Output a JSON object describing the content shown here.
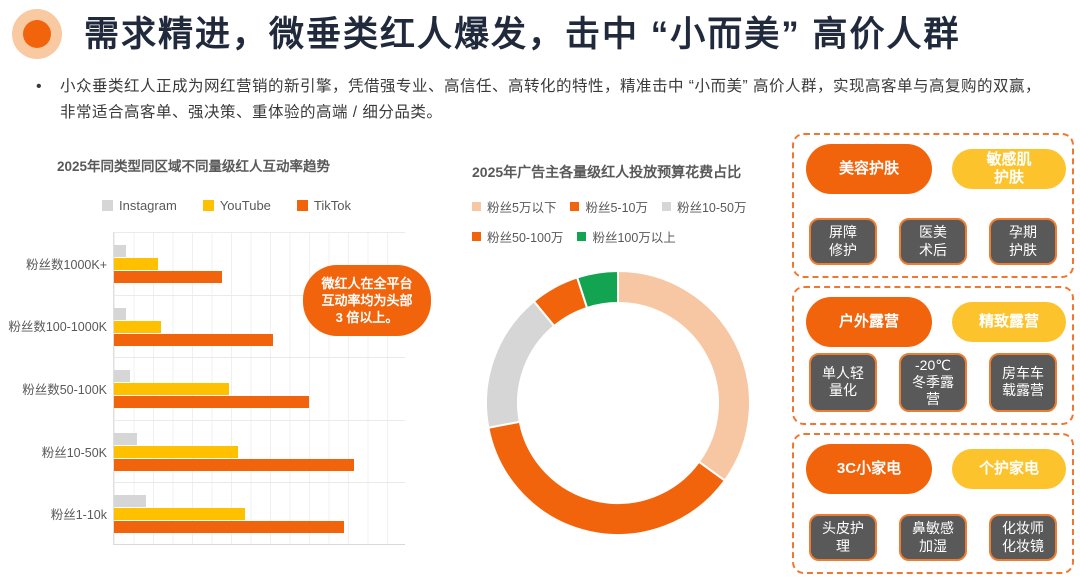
{
  "slide": {
    "title": "需求精进，微垂类红人爆发，击中 “小而美” 高价人群",
    "intro_bullet": "•",
    "intro_text": "小众垂类红人正成为网红营销的新引擎，凭借强专业、高信任、高转化的特性，精准击中 “小而美” 高价人群，实现高客单与高复购的双赢，非常适合高客单、强决策、重体验的高端 / 细分品类。"
  },
  "colors": {
    "accent_orange": "#F2640C",
    "accent_yellow": "#FFC000",
    "pill_yellow": "#FDC32C",
    "light_gray": "#D6D6D6",
    "peach": "#F7C7A4",
    "green": "#13A452",
    "dark_tag": "#595959",
    "title_navy": "#212A3C",
    "chart_text_gray": "#595959",
    "dashed_border": "#F0772F"
  },
  "chart_data": [
    {
      "type": "bar",
      "orientation": "horizontal",
      "title": "2025年同类型同区域不同量级红人互动率趋势",
      "categories": [
        "粉丝数1000K+",
        "粉丝数100-1000K",
        "粉丝数50-100K",
        "粉丝10-50K",
        "粉丝1-10k"
      ],
      "series": [
        {
          "name": "Instagram",
          "color": "#D6D6D6",
          "values": [
            4,
            4.2,
            5.5,
            8,
            11
          ]
        },
        {
          "name": "YouTube",
          "color": "#FFC000",
          "values": [
            15,
            16,
            39.5,
            42.5,
            45
          ]
        },
        {
          "name": "TikTok",
          "color": "#F2640C",
          "values": [
            37,
            54.5,
            67,
            82.5,
            79
          ]
        }
      ],
      "xlabel": "",
      "ylabel": "",
      "xlim": [
        0,
        100
      ],
      "x_tick_labels": [],
      "grid": true,
      "legend_position": "top",
      "note": "values are relative bar lengths in % of axis; no numeric axis labels shown",
      "annotation": "微红人在全平台互动率均为头部3 倍以上。"
    },
    {
      "type": "pie",
      "donut": true,
      "title": "2025年广告主各量级红人投放预算花费占比",
      "labels": [
        "粉丝5万以下",
        "粉丝5-10万",
        "粉丝10-50万",
        "粉丝50-100万",
        "粉丝100万以上"
      ],
      "values": [
        35,
        37,
        17,
        6,
        5
      ],
      "colors": [
        "#F7C7A4",
        "#F2640C",
        "#D6D6D6",
        "#F2640C",
        "#13A452"
      ],
      "legend_position": "top",
      "start_angle_deg": 0,
      "direction": "clockwise"
    }
  ],
  "callout": {
    "text": "微红人在全平台\n互动率均为头部\n3 倍以上。"
  },
  "panels": [
    {
      "primary": "美容护肤",
      "secondary": "敏感肌\n护肤",
      "tags": [
        "屏障\n修护",
        "医美\n术后",
        "孕期\n护肤"
      ]
    },
    {
      "primary": "户外露营",
      "secondary": "精致露营",
      "tags": [
        "单人轻\n量化",
        "-20℃\n冬季露\n营",
        "房车车\n载露营"
      ]
    },
    {
      "primary": "3C小家电",
      "secondary": "个护家电",
      "tags": [
        "头皮护\n理",
        "鼻敏感\n加湿",
        "化妆师\n化妆镜"
      ]
    }
  ]
}
